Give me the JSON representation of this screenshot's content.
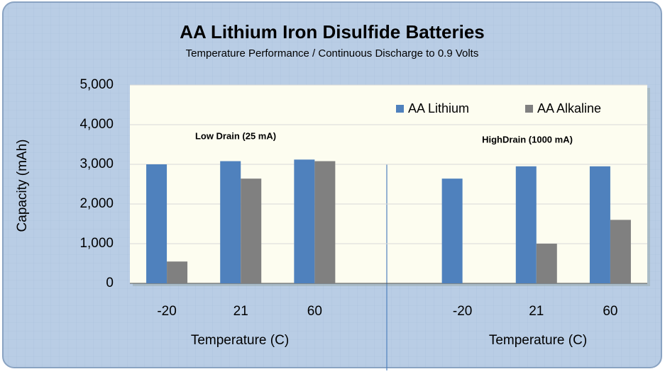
{
  "chart_data": {
    "type": "bar",
    "title": "AA Lithium Iron Disulfide Batteries",
    "subtitle": "Temperature Performance / Continuous Discharge to 0.9 Volts",
    "y_label": "Capacity  (mAh)",
    "x_labels": [
      "Temperature (C)",
      "Temperature (C)"
    ],
    "annotations": [
      "Low Drain (25 mA)",
      "HighDrain (1000 mA)"
    ],
    "categories": [
      "-20",
      "21",
      "60",
      null,
      "-20",
      "21",
      "60"
    ],
    "series": [
      {
        "name": "AA Lithium",
        "color": "#4f81bd",
        "values": [
          3000,
          3080,
          3120,
          null,
          2640,
          2950,
          2950
        ]
      },
      {
        "name": "AA Alkaline",
        "color": "#808080",
        "values": [
          550,
          2640,
          3080,
          null,
          0,
          1000,
          1600
        ]
      }
    ],
    "ylim": [
      0,
      5000
    ],
    "yticks": [
      0,
      {
        "value": 1000,
        "label": "1,000"
      },
      {
        "value": 2000,
        "label": "2,000"
      },
      {
        "value": 3000,
        "label": "3,000"
      },
      {
        "value": 4000,
        "label": "4,000"
      },
      {
        "value": 5000,
        "label": "5,000"
      }
    ],
    "grid": true,
    "legend": "top-right"
  }
}
